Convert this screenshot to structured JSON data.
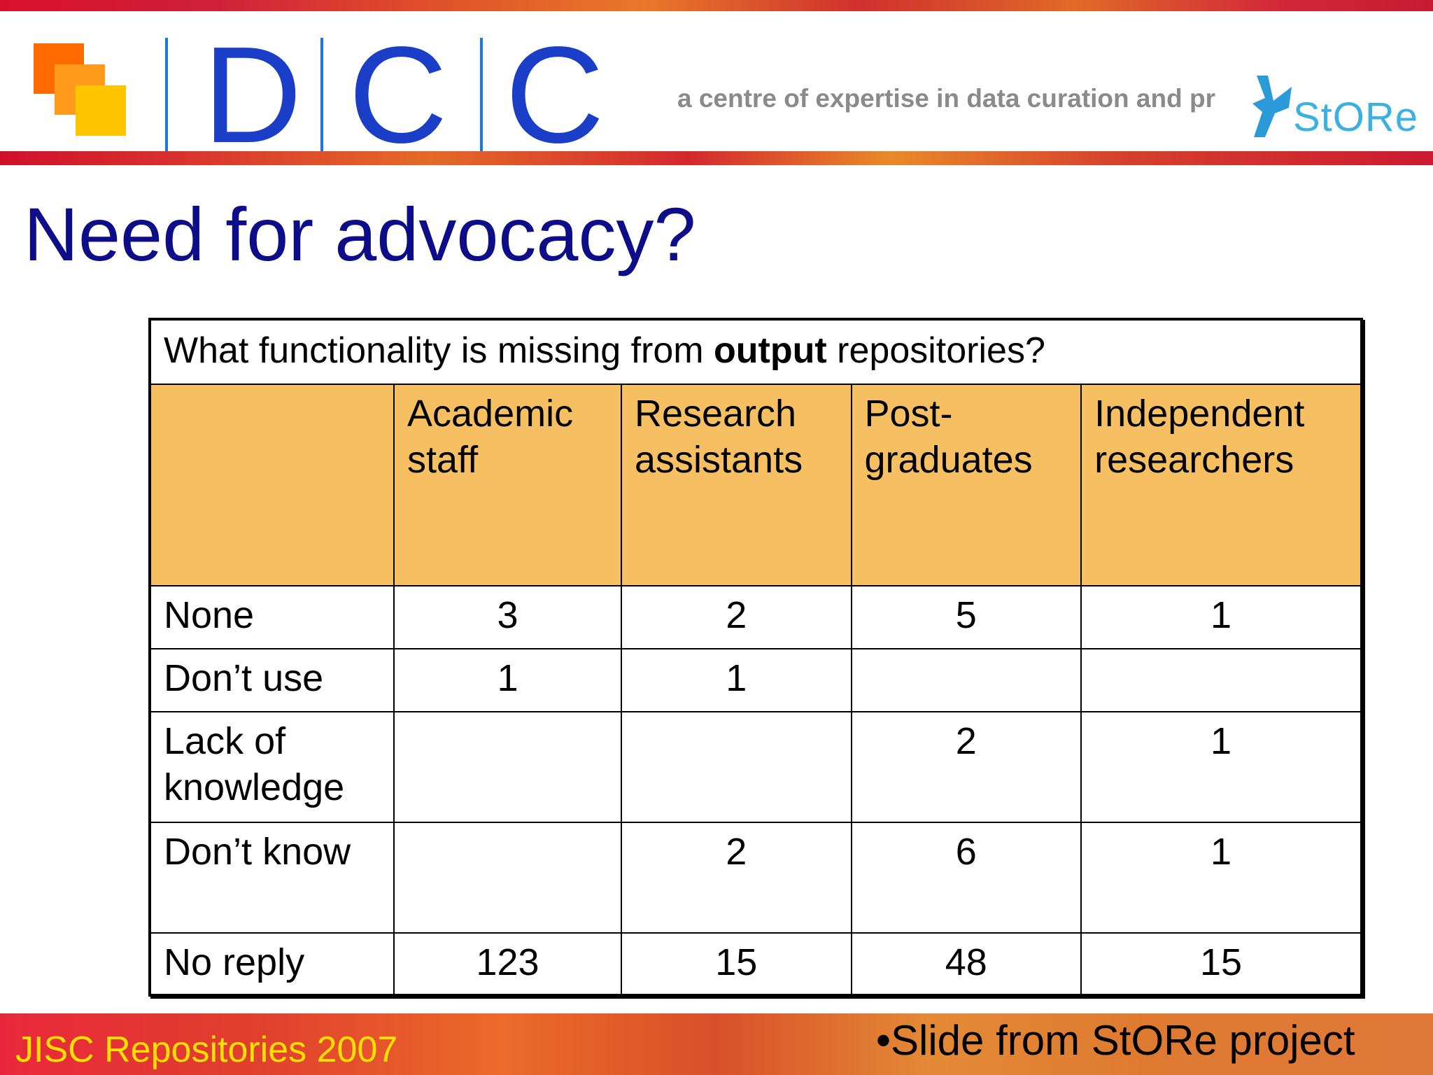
{
  "header": {
    "logo_letters": [
      "D",
      "C",
      "C"
    ],
    "tagline": "a centre of expertise in data curation and pr",
    "store_logo_text": "StORe"
  },
  "slide": {
    "title": "Need for advocacy?"
  },
  "table": {
    "question_prefix": "What functionality is missing from ",
    "question_bold": "output",
    "question_suffix": " repositories?",
    "columns": [
      [
        "Academic",
        "staff"
      ],
      [
        "Research",
        "assistants"
      ],
      [
        "Post-",
        "graduates"
      ],
      [
        "Independent",
        "researchers"
      ]
    ],
    "rows": [
      {
        "label": [
          "None"
        ],
        "values": [
          "3",
          "2",
          "5",
          "1"
        ]
      },
      {
        "label": [
          "Don’t use"
        ],
        "values": [
          "1",
          "1",
          "",
          ""
        ]
      },
      {
        "label": [
          "Lack of",
          "knowledge"
        ],
        "values": [
          "",
          "",
          "2",
          "1"
        ]
      },
      {
        "label": [
          "Don’t know"
        ],
        "values": [
          "",
          "2",
          "6",
          "1"
        ]
      },
      {
        "label": [
          "No reply"
        ],
        "values": [
          "123",
          "15",
          "48",
          "15"
        ]
      }
    ]
  },
  "footer": {
    "left": "JISC Repositories 2007",
    "right": "•Slide from StORe project"
  },
  "colors": {
    "title": "#0d0d8a",
    "header_row_fill": "#f6c062",
    "dcc_blue": "#1a3ec8",
    "footer_left_text": "#ffe000"
  }
}
